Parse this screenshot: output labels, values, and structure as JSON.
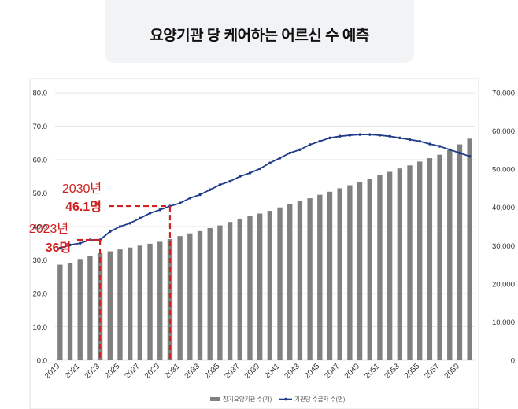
{
  "title": "요양기관 당 케어하는 어르신 수 예측",
  "colors": {
    "bar": "#808080",
    "line": "#1f3c88",
    "annotation": "#d0201f",
    "grid": "#dcdcdc",
    "axis_text": "#333333"
  },
  "chart_data": {
    "type": "bar+line",
    "x_labels": [
      "2019",
      "2021",
      "2023",
      "2025",
      "2027",
      "2029",
      "2031",
      "2033",
      "2035",
      "2037",
      "2039",
      "2041",
      "2043",
      "2045",
      "2047",
      "2049",
      "2051",
      "2053",
      "2055",
      "2057",
      "2059"
    ],
    "years": [
      2019,
      2020,
      2021,
      2022,
      2023,
      2024,
      2025,
      2026,
      2027,
      2028,
      2029,
      2030,
      2031,
      2032,
      2033,
      2034,
      2035,
      2036,
      2037,
      2038,
      2039,
      2040,
      2041,
      2042,
      2043,
      2044,
      2045,
      2046,
      2047,
      2048,
      2049,
      2050,
      2051,
      2052,
      2053,
      2054,
      2055,
      2056,
      2057,
      2058,
      2059,
      2060
    ],
    "left_axis": {
      "min": 0,
      "max": 80,
      "ticks": [
        "0.0",
        "10.0",
        "20.0",
        "30.0",
        "40.0",
        "50.0",
        "60.0",
        "70.0",
        "80.0"
      ]
    },
    "right_axis": {
      "min": 0,
      "max": 70000,
      "ticks": [
        "0",
        "10,000",
        "20,000",
        "30,000",
        "40,000",
        "50,000",
        "60,000",
        "70,000"
      ]
    },
    "series": [
      {
        "name": "장기요양기관 수(개)",
        "type": "bar",
        "axis": "right",
        "values": [
          25000,
          25500,
          26500,
          27200,
          28000,
          28500,
          29000,
          29500,
          30000,
          30500,
          31000,
          31700,
          32500,
          33200,
          33800,
          34600,
          35300,
          36200,
          37000,
          37700,
          38400,
          39100,
          40000,
          40800,
          41600,
          42400,
          43300,
          44100,
          45000,
          45800,
          46700,
          47500,
          48400,
          49300,
          50200,
          51000,
          52000,
          52900,
          53800,
          55000,
          56500,
          58000
        ]
      },
      {
        "name": "기관당 수급자 수(명)",
        "type": "line",
        "axis": "left",
        "values": [
          33.5,
          34.5,
          35.0,
          36.0,
          36.0,
          38.5,
          40.0,
          41.0,
          42.5,
          44.0,
          45.0,
          46.1,
          47.0,
          48.5,
          49.5,
          51.0,
          52.5,
          53.5,
          55.0,
          56.0,
          57.3,
          59.0,
          60.5,
          62.0,
          63.0,
          64.5,
          65.5,
          66.5,
          67.0,
          67.3,
          67.5,
          67.5,
          67.3,
          67.0,
          66.5,
          66.0,
          65.5,
          64.7,
          64.0,
          63.0,
          62.0,
          61.0
        ]
      }
    ],
    "annotations": [
      {
        "year_label": "2023년",
        "value_label": "36명",
        "year": 2023,
        "value": 36.0
      },
      {
        "year_label": "2030년",
        "value_label": "46.1명",
        "year": 2030,
        "value": 46.1
      }
    ],
    "legend_position": "bottom-center"
  }
}
